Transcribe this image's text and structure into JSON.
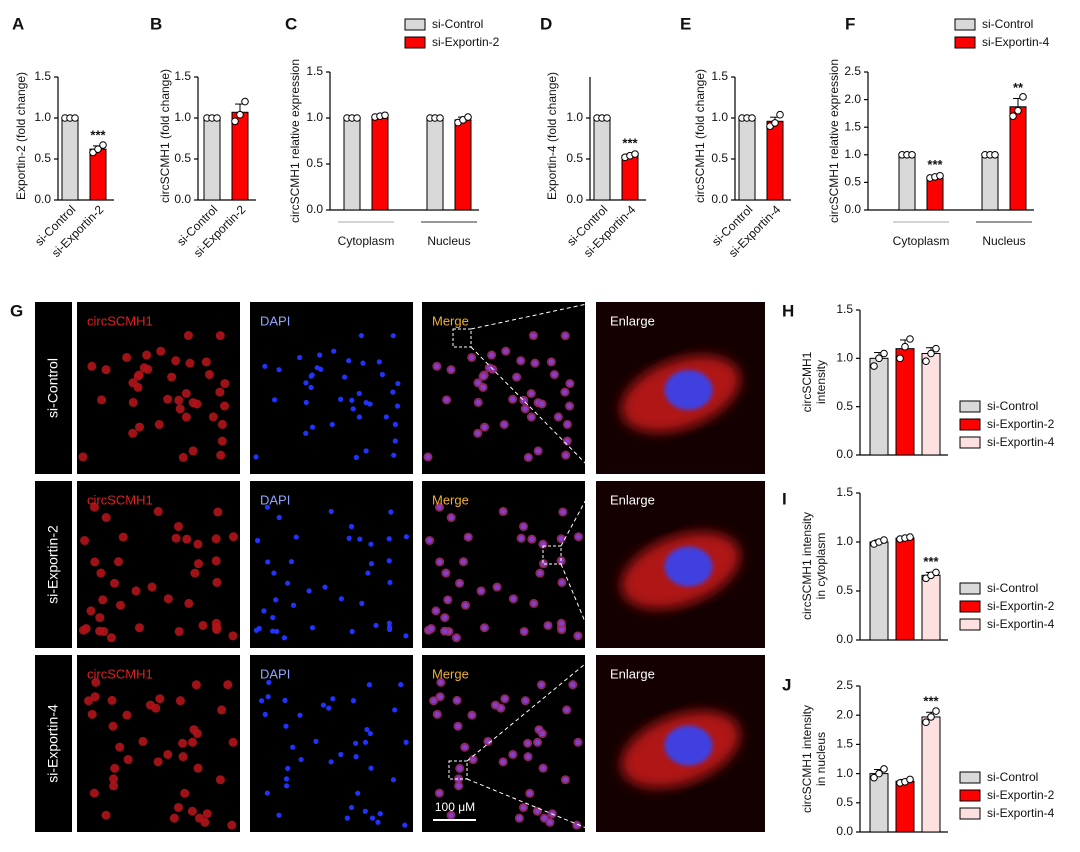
{
  "chart_data": [
    {
      "panel": "A",
      "type": "bar",
      "ylabel": "Exportin-2 (fold change)",
      "categories": [
        "si-Control",
        "si-Exportin-2"
      ],
      "values": [
        1.0,
        0.62
      ],
      "errors": [
        0,
        0.04
      ],
      "points": [
        [
          1,
          1,
          1
        ],
        [
          0.58,
          0.62,
          0.67
        ]
      ],
      "colors": [
        "#d9d9d9",
        "#ff0000"
      ],
      "significance": [
        null,
        "***"
      ],
      "ylim": [
        0,
        1.5
      ],
      "yticks": [
        {
          "value": 0,
          "label": "0.0"
        },
        {
          "value": 0.5,
          "label": "0.5"
        },
        {
          "value": 1,
          "label": "1.0"
        },
        {
          "value": 1.5,
          "label": "1.5"
        }
      ]
    },
    {
      "panel": "B",
      "type": "bar",
      "ylabel": "circSCMH1 (fold change)",
      "categories": [
        "si-Control",
        "si-Exportin-2"
      ],
      "values": [
        1.0,
        1.07
      ],
      "errors": [
        0,
        0.1
      ],
      "points": [
        [
          1,
          1,
          1
        ],
        [
          0.96,
          1.04,
          1.2
        ]
      ],
      "colors": [
        "#d9d9d9",
        "#ff0000"
      ],
      "ylim": [
        0,
        1.5
      ],
      "yticks": [
        {
          "value": 0,
          "label": "0.0"
        },
        {
          "value": 0.5,
          "label": "0.5"
        },
        {
          "value": 1,
          "label": "1.0"
        },
        {
          "value": 1.5,
          "label": "1.5"
        }
      ]
    },
    {
      "panel": "C",
      "type": "bar",
      "ylabel": "circSCMH1 relative expression",
      "categories": [
        "Cytoplasm",
        "Nucleus"
      ],
      "series": [
        {
          "name": "si-Control",
          "color": "#d9d9d9",
          "values": [
            1.0,
            1.0
          ],
          "errors": [
            0,
            0
          ],
          "points": [
            [
              1,
              1,
              1
            ],
            [
              1,
              1,
              1
            ]
          ]
        },
        {
          "name": "si-Exportin-2",
          "color": "#ff0000",
          "values": [
            1.02,
            0.98
          ],
          "errors": [
            0.01,
            0.03
          ],
          "points": [
            [
              1.01,
              1.02,
              1.03
            ],
            [
              0.95,
              0.98,
              1.01
            ]
          ]
        }
      ],
      "ylim": [
        0,
        1.5
      ],
      "yticks": [
        {
          "value": 0,
          "label": "0.0"
        },
        {
          "value": 0.5,
          "label": "0.5"
        },
        {
          "value": 1,
          "label": "1.0"
        },
        {
          "value": 1.5,
          "label": "1.5"
        }
      ]
    },
    {
      "panel": "D",
      "type": "bar",
      "ylabel": "Exportin-4 (fold change)",
      "categories": [
        "si-Control",
        "si-Exportin-4"
      ],
      "values": [
        1.0,
        0.54
      ],
      "errors": [
        0,
        0.02
      ],
      "points": [
        [
          1,
          1,
          1
        ],
        [
          0.52,
          0.54,
          0.56
        ]
      ],
      "colors": [
        "#d9d9d9",
        "#ff0000"
      ],
      "significance": [
        null,
        "***"
      ],
      "ylim": [
        0,
        1.5
      ],
      "yticks": [
        {
          "value": 0,
          "label": "0.0"
        },
        {
          "value": 0.5,
          "label": "0.5"
        },
        {
          "value": 1,
          "label": "1.0"
        }
      ]
    },
    {
      "panel": "E",
      "type": "bar",
      "ylabel": "circSCMH1 (fold change)",
      "categories": [
        "si-Control",
        "si-Exportin-4"
      ],
      "values": [
        1.0,
        0.96
      ],
      "errors": [
        0,
        0.05
      ],
      "points": [
        [
          1,
          1,
          1
        ],
        [
          0.9,
          0.94,
          1.04
        ]
      ],
      "colors": [
        "#d9d9d9",
        "#ff0000"
      ],
      "ylim": [
        0,
        1.5
      ],
      "yticks": [
        {
          "value": 0,
          "label": "0.0"
        },
        {
          "value": 0.5,
          "label": "0.5"
        },
        {
          "value": 1,
          "label": "1.0"
        },
        {
          "value": 1.5,
          "label": "1.5"
        }
      ]
    },
    {
      "panel": "F",
      "type": "bar",
      "ylabel": "circSCMH1 relative expression",
      "categories": [
        "Cytoplasm",
        "Nucleus"
      ],
      "series": [
        {
          "name": "si-Control",
          "color": "#d9d9d9",
          "values": [
            1.0,
            1.0
          ],
          "errors": [
            0,
            0
          ],
          "points": [
            [
              1,
              1,
              1
            ],
            [
              1,
              1,
              1
            ]
          ]
        },
        {
          "name": "si-Exportin-4",
          "color": "#ff0000",
          "values": [
            0.6,
            1.87
          ],
          "errors": [
            0.02,
            0.15
          ],
          "points": [
            [
              0.58,
              0.6,
              0.62
            ],
            [
              1.7,
              1.8,
              2.05
            ]
          ],
          "significance": [
            "***",
            "**"
          ]
        }
      ],
      "ylim": [
        0,
        2.5
      ],
      "yticks": [
        {
          "value": 0,
          "label": "0.0"
        },
        {
          "value": 0.5,
          "label": "0.5"
        },
        {
          "value": 1,
          "label": "1.0"
        },
        {
          "value": 1.5,
          "label": "1.5"
        },
        {
          "value": 2,
          "label": "2.0"
        },
        {
          "value": 2.5,
          "label": "2.5"
        }
      ]
    },
    {
      "panel": "H",
      "type": "bar",
      "ylabel": [
        "circSCMH1",
        "intensity"
      ],
      "series": [
        {
          "name": "si-Control",
          "color": "#d9d9d9",
          "values": [
            1.0
          ],
          "errors": [
            0.06
          ],
          "points": [
            [
              0.92,
              1.0,
              1.05
            ]
          ]
        },
        {
          "name": "si-Exportin-2",
          "color": "#ff0000",
          "values": [
            1.1
          ],
          "errors": [
            0.09
          ],
          "points": [
            [
              1.0,
              1.12,
              1.2
            ]
          ]
        },
        {
          "name": "si-Exportin-4",
          "color": "#fde0e0",
          "values": [
            1.05
          ],
          "errors": [
            0.06
          ],
          "points": [
            [
              0.97,
              1.05,
              1.1
            ]
          ]
        }
      ],
      "ylim": [
        0,
        1.5
      ],
      "yticks": [
        {
          "value": 0,
          "label": "0.0"
        },
        {
          "value": 0.5,
          "label": "0.5"
        },
        {
          "value": 1,
          "label": "1.0"
        },
        {
          "value": 1.5,
          "label": "1.5"
        }
      ]
    },
    {
      "panel": "I",
      "type": "bar",
      "ylabel": [
        "circSCMH1 intensity",
        "in cytoplasm"
      ],
      "series": [
        {
          "name": "si-Control",
          "color": "#d9d9d9",
          "values": [
            1.0
          ],
          "errors": [
            0.02
          ],
          "points": [
            [
              0.98,
              1.0,
              1.02
            ]
          ]
        },
        {
          "name": "si-Exportin-2",
          "color": "#ff0000",
          "values": [
            1.04
          ],
          "errors": [
            0.01
          ],
          "points": [
            [
              1.03,
              1.04,
              1.05
            ]
          ]
        },
        {
          "name": "si-Exportin-4",
          "color": "#fde0e0",
          "values": [
            0.66
          ],
          "errors": [
            0.03
          ],
          "points": [
            [
              0.63,
              0.66,
              0.69
            ]
          ],
          "significance": [
            "***"
          ]
        }
      ],
      "ylim": [
        0,
        1.5
      ],
      "yticks": [
        {
          "value": 0,
          "label": "0.0"
        },
        {
          "value": 0.5,
          "label": "0.5"
        },
        {
          "value": 1,
          "label": "1.0"
        },
        {
          "value": 1.5,
          "label": "1.5"
        }
      ]
    },
    {
      "panel": "J",
      "type": "bar",
      "ylabel": [
        "circSCMH1 intensity",
        "in nucleus"
      ],
      "series": [
        {
          "name": "si-Control",
          "color": "#d9d9d9",
          "values": [
            1.0
          ],
          "errors": [
            0.07
          ],
          "points": [
            [
              0.93,
              1.0,
              1.08
            ]
          ]
        },
        {
          "name": "si-Exportin-2",
          "color": "#ff0000",
          "values": [
            0.87
          ],
          "errors": [
            0.03
          ],
          "points": [
            [
              0.84,
              0.86,
              0.9
            ]
          ]
        },
        {
          "name": "si-Exportin-4",
          "color": "#fde0e0",
          "values": [
            1.97
          ],
          "errors": [
            0.08
          ],
          "points": [
            [
              1.88,
              1.97,
              2.07
            ]
          ],
          "significance": [
            "***"
          ]
        }
      ],
      "ylim": [
        0,
        2.5
      ],
      "yticks": [
        {
          "value": 0,
          "label": "0.0"
        },
        {
          "value": 0.5,
          "label": "0.5"
        },
        {
          "value": 1,
          "label": "1.0"
        },
        {
          "value": 1.5,
          "label": "1.5"
        },
        {
          "value": 2,
          "label": "2.0"
        },
        {
          "value": 2.5,
          "label": "2.5"
        }
      ]
    }
  ],
  "figure_g": {
    "panel": "G",
    "rows": [
      "si-Control",
      "si-Exportin-2",
      "si-Exportin-4"
    ],
    "channels": [
      "circSCMH1",
      "DAPI",
      "Merge",
      "Enlarge"
    ],
    "scale_bar": "100 μM"
  }
}
